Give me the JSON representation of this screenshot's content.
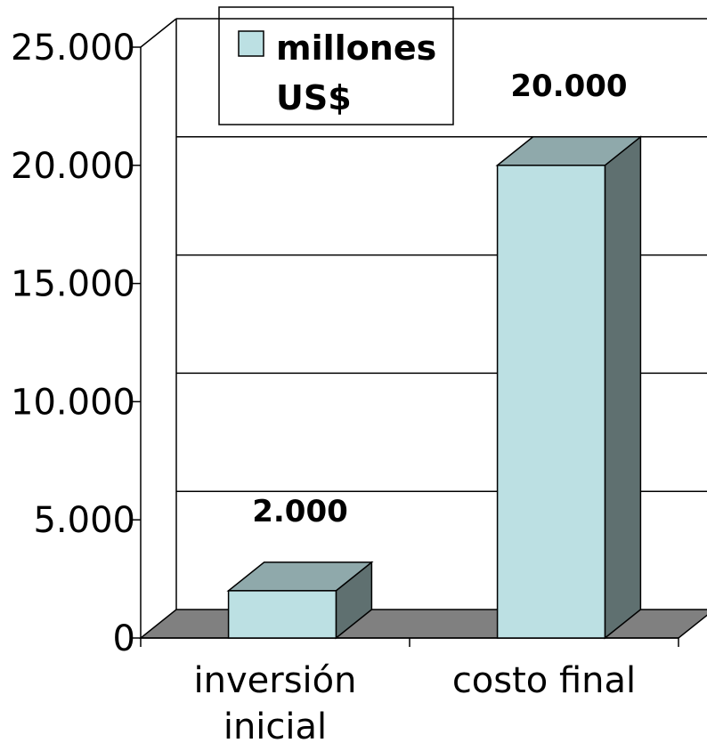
{
  "chart_data": {
    "type": "bar3d",
    "categories": [
      "inversión inicial",
      "costo final"
    ],
    "series": [
      {
        "name": "millones US$",
        "color": "#bce0e3",
        "values": [
          2000,
          20000
        ],
        "value_labels": [
          "2.000",
          "20.000"
        ]
      }
    ],
    "ylim": [
      0,
      25000
    ],
    "yticks": [
      0,
      {
        "value": 5000,
        "label": "5.000"
      },
      {
        "value": 10000,
        "label": "10.000"
      },
      {
        "value": 15000,
        "label": "15.000"
      },
      {
        "value": 20000,
        "label": "20.000"
      },
      {
        "value": 25000,
        "label": "25.000"
      }
    ],
    "grid": true,
    "legend": "top"
  }
}
